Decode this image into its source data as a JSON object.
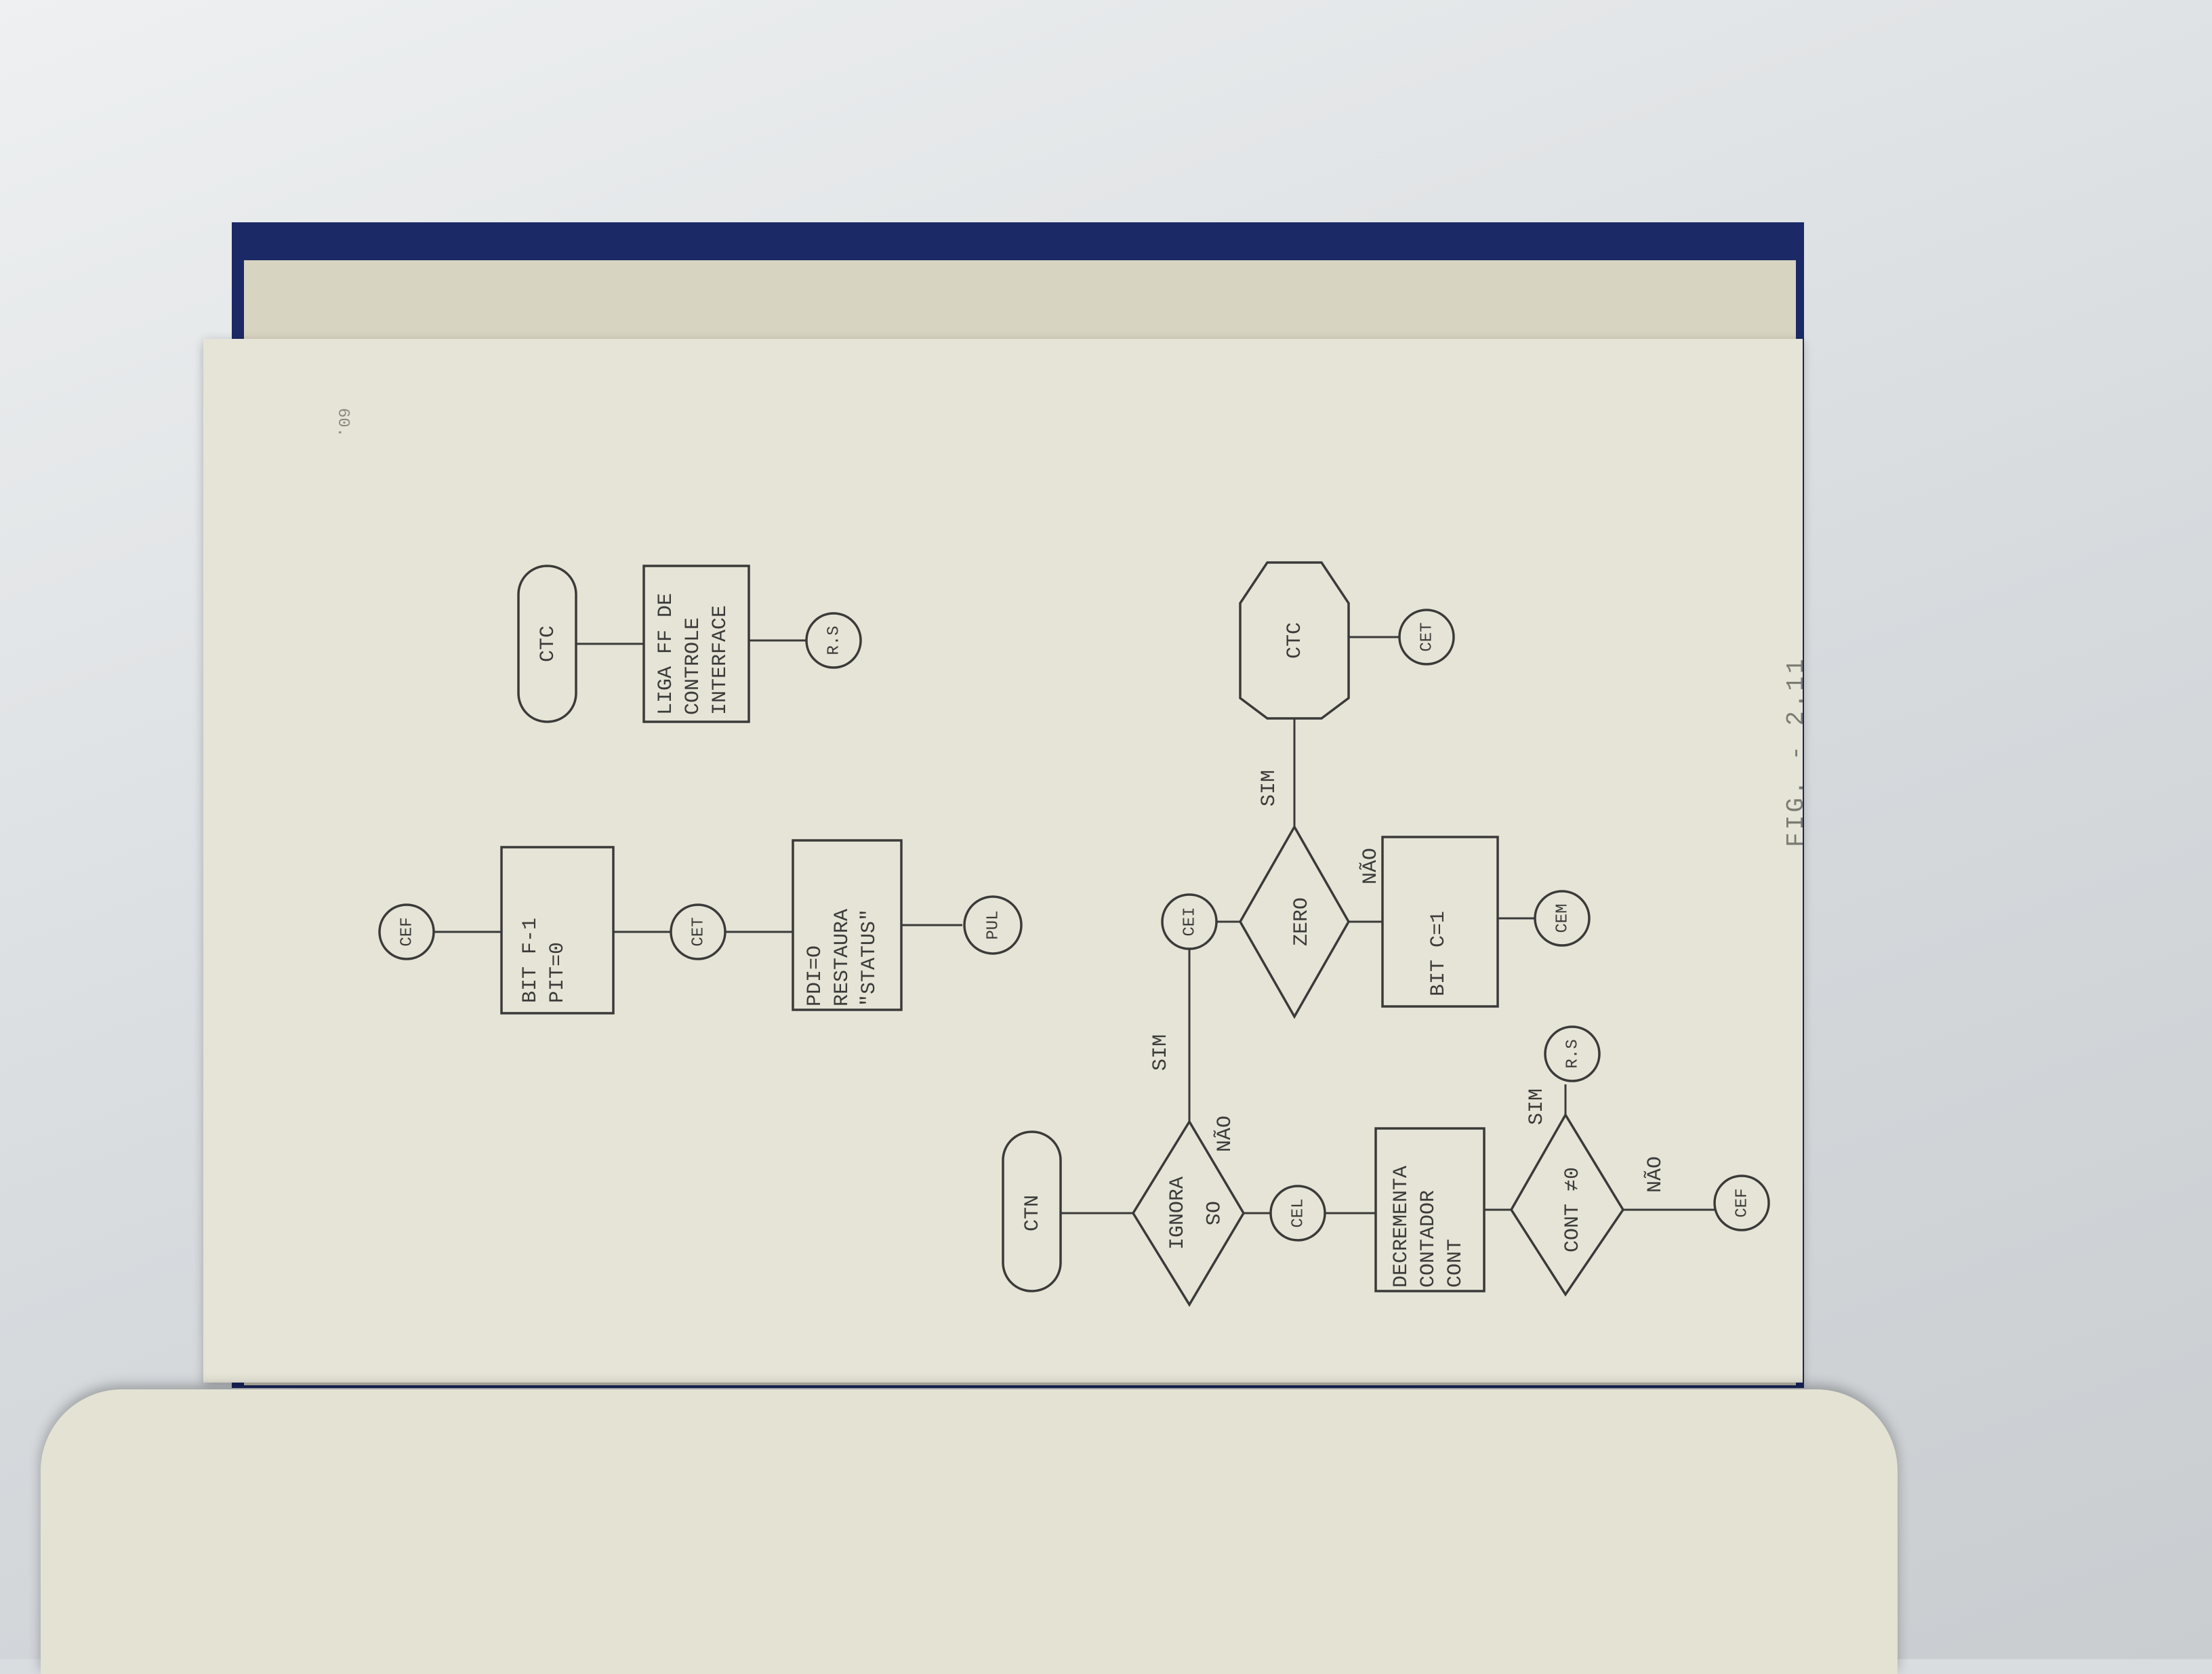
{
  "page": {
    "page_number": "60.",
    "figure_caption": "FIG. - 2.11"
  },
  "flow_top_left": {
    "start_connector": "CEF",
    "box": "BIT F-1\nPIT=0",
    "mid_connector": "CET",
    "box2": "PDI=O\nRESTAURA\n\"STATUS\"",
    "end_connector": "PUL"
  },
  "flow_top_right": {
    "start_terminal": "CTC",
    "box": "LIGA FF DE\nCONTROLE\nINTERFACE",
    "end_connector": "R.S"
  },
  "flow_bottom": {
    "start_terminal": "CTN",
    "decision1": "IGNORA\nOS",
    "decision1_yes": "SIM",
    "decision1_no": "NÃO",
    "connector_cei": "CEI",
    "connector_cel": "CEL",
    "decision2": "ZERO",
    "decision2_yes": "SIM",
    "decision2_no": "NÃO",
    "hex": "CTC",
    "connector_cet": "CET",
    "box_bit": "BIT C=1",
    "connector_cem": "CEM",
    "box_dec": "DECREMENTA\nCONTADOR\nCONT",
    "decision3": "CONT ≠0",
    "decision3_yes": "SIM",
    "decision3_no": "NÃO",
    "connector_rs": "R.S",
    "connector_cef": "CEF"
  }
}
